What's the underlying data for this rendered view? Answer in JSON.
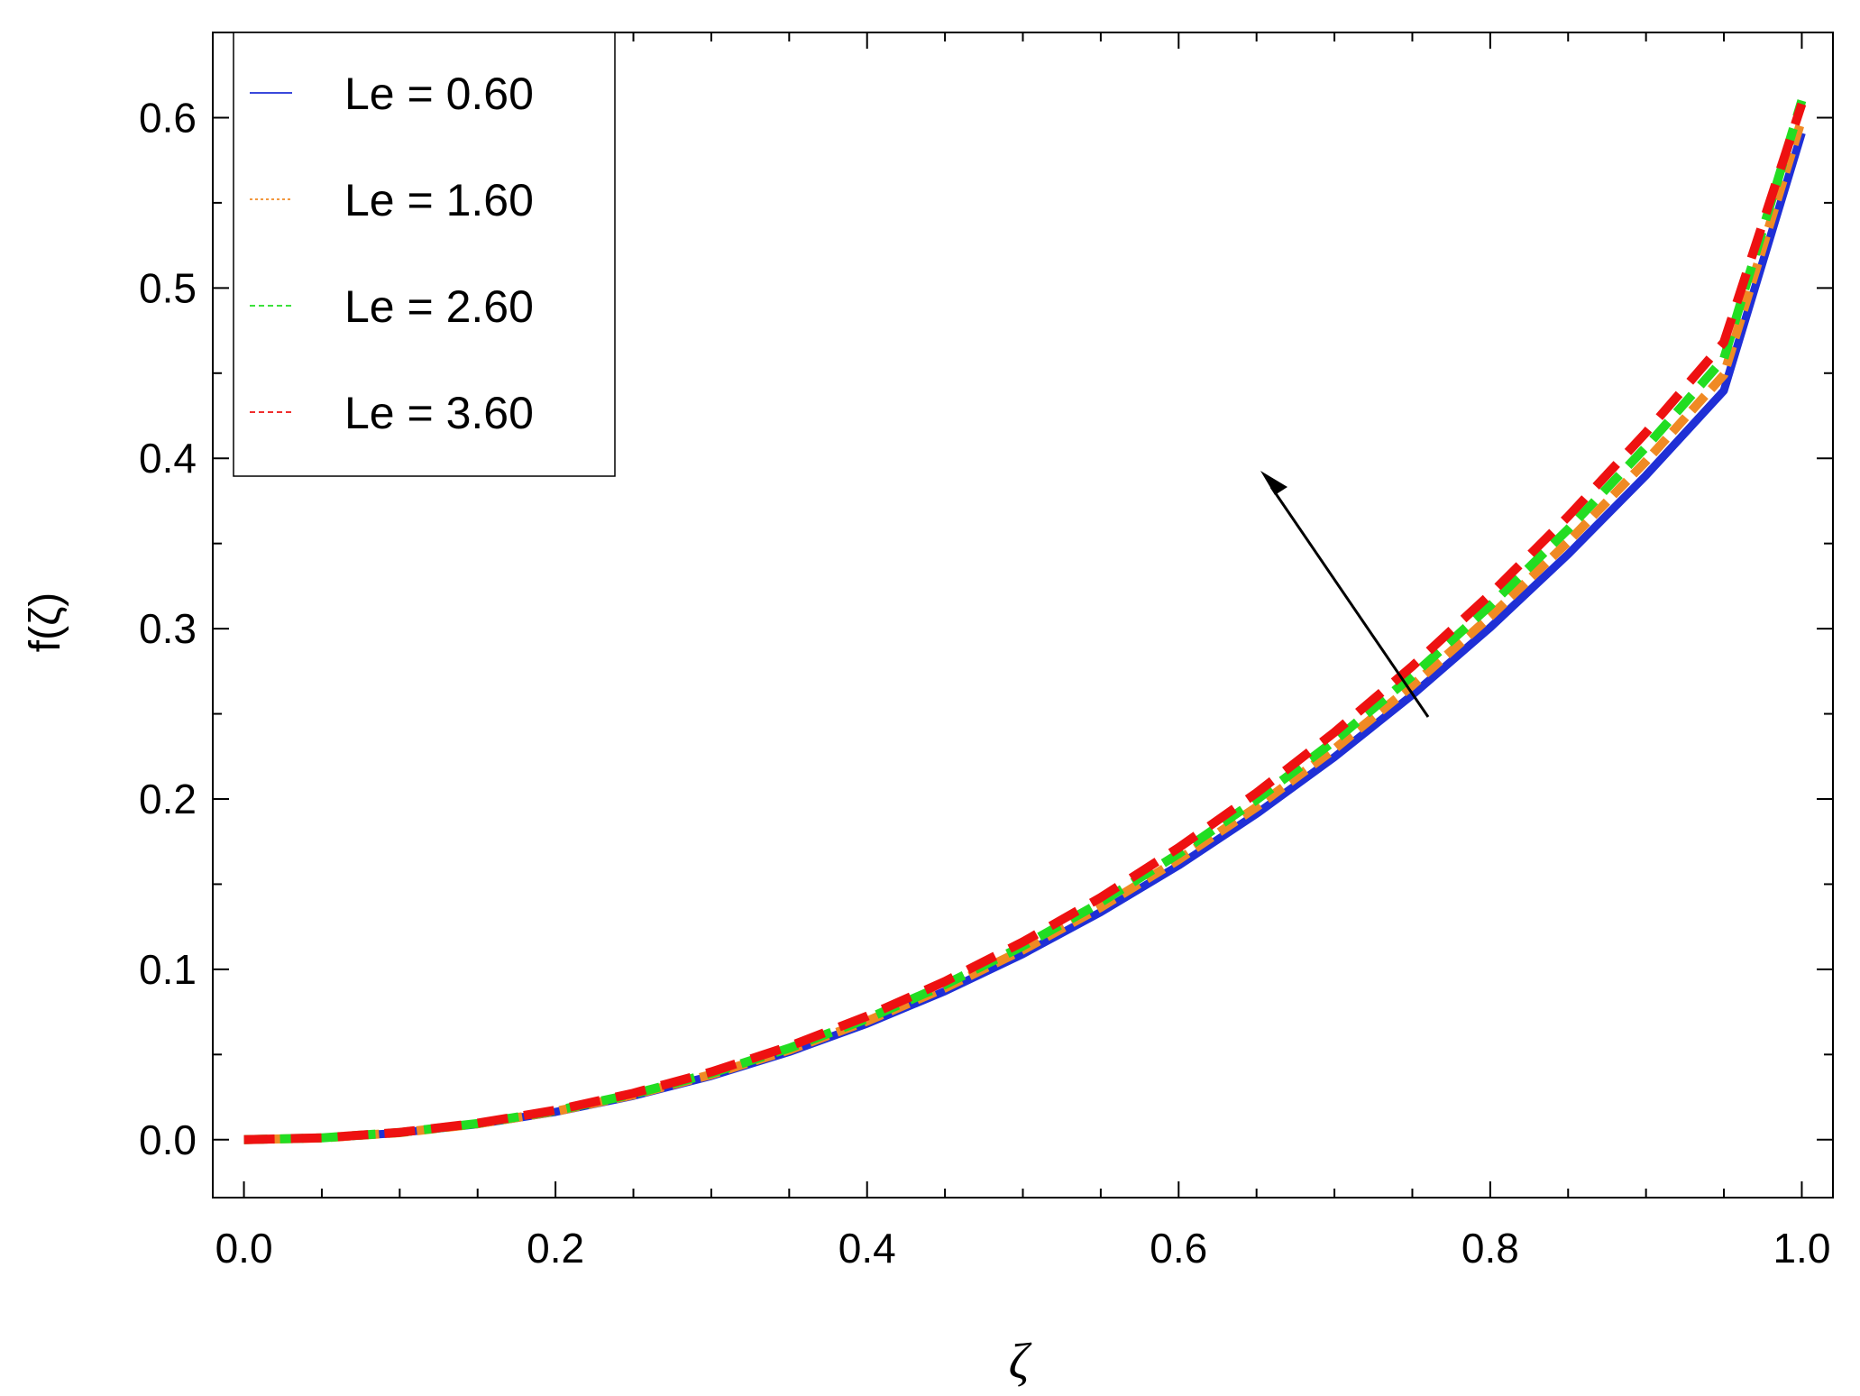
{
  "chart_data": {
    "type": "line",
    "xlabel": "ζ",
    "ylabel": "f(ζ)",
    "xlim": [
      -0.02,
      1.02
    ],
    "ylim": [
      -0.034,
      0.65
    ],
    "xticks": [
      "0.0",
      "0.2",
      "0.4",
      "0.6",
      "0.8",
      "1.0"
    ],
    "yticks": [
      "0.0",
      "0.1",
      "0.2",
      "0.3",
      "0.4",
      "0.5",
      "0.6"
    ],
    "legend_position": "top-left",
    "grid": false,
    "annotation": "arrow pointing up-left indicating increasing Le",
    "x": [
      0.0,
      0.05,
      0.1,
      0.15,
      0.2,
      0.25,
      0.3,
      0.35,
      0.4,
      0.45,
      0.5,
      0.55,
      0.6,
      0.65,
      0.7,
      0.75,
      0.8,
      0.85,
      0.9,
      0.95,
      1.0
    ],
    "series": [
      {
        "name": "Le = 0.60",
        "color": "#1f2fd6",
        "style": "solid",
        "values": [
          0.0,
          0.001,
          0.004,
          0.0091,
          0.0163,
          0.0257,
          0.0374,
          0.0515,
          0.0681,
          0.0872,
          0.109,
          0.1336,
          0.161,
          0.1913,
          0.2246,
          0.2611,
          0.3007,
          0.3437,
          0.39,
          0.4397,
          0.591
        ]
      },
      {
        "name": "Le = 1.60",
        "color": "#f08a24",
        "style": "dotted",
        "values": [
          0.0,
          0.001,
          0.0041,
          0.0093,
          0.0166,
          0.0263,
          0.0382,
          0.0526,
          0.0696,
          0.0891,
          0.1114,
          0.1364,
          0.1644,
          0.1953,
          0.2294,
          0.2667,
          0.3071,
          0.351,
          0.3983,
          0.449,
          0.599
        ]
      },
      {
        "name": "Le = 2.60",
        "color": "#22dd22",
        "style": "dashed",
        "values": [
          0.0,
          0.0011,
          0.0042,
          0.0095,
          0.017,
          0.0268,
          0.039,
          0.0537,
          0.071,
          0.091,
          0.1137,
          0.1393,
          0.1679,
          0.1995,
          0.2342,
          0.2723,
          0.3136,
          0.3584,
          0.4067,
          0.4585,
          0.61
        ]
      },
      {
        "name": "Le = 3.60",
        "color": "#ee1111",
        "style": "dashed",
        "values": [
          0.0,
          0.0011,
          0.0043,
          0.0097,
          0.0173,
          0.0273,
          0.0398,
          0.0548,
          0.0725,
          0.0929,
          0.1161,
          0.1422,
          0.1714,
          0.2036,
          0.2391,
          0.278,
          0.3202,
          0.3659,
          0.4152,
          0.4681,
          0.608
        ]
      }
    ]
  }
}
